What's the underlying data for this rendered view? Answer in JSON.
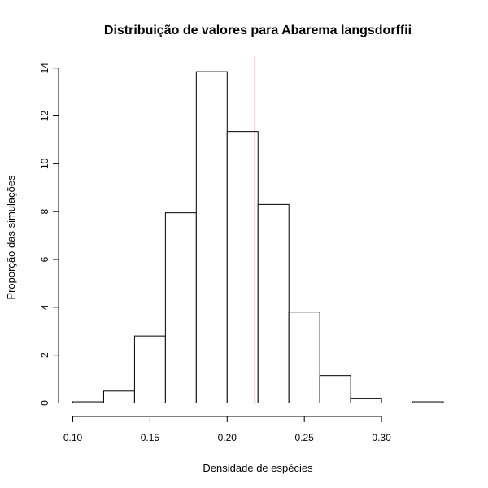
{
  "chart_data": {
    "type": "bar",
    "title": "Distribuição de valores para Abarema langsdorffii",
    "xlabel": "Densidade de espécies",
    "ylabel": "Proporção das simulações",
    "xlim": [
      0.1,
      0.34
    ],
    "ylim": [
      0,
      14.5
    ],
    "x_ticks": [
      "0.10",
      "0.15",
      "0.20",
      "0.25",
      "0.30"
    ],
    "x_tick_values": [
      0.1,
      0.15,
      0.2,
      0.25,
      0.3
    ],
    "y_ticks": [
      "0",
      "2",
      "4",
      "6",
      "8",
      "10",
      "12",
      "14"
    ],
    "y_tick_values": [
      0,
      2,
      4,
      6,
      8,
      10,
      12,
      14
    ],
    "bins": [
      {
        "start": 0.1,
        "end": 0.12,
        "value": 0.05
      },
      {
        "start": 0.12,
        "end": 0.14,
        "value": 0.5
      },
      {
        "start": 0.14,
        "end": 0.16,
        "value": 2.8
      },
      {
        "start": 0.16,
        "end": 0.18,
        "value": 7.95
      },
      {
        "start": 0.18,
        "end": 0.2,
        "value": 13.85
      },
      {
        "start": 0.2,
        "end": 0.22,
        "value": 11.35
      },
      {
        "start": 0.22,
        "end": 0.24,
        "value": 8.3
      },
      {
        "start": 0.24,
        "end": 0.26,
        "value": 3.8
      },
      {
        "start": 0.26,
        "end": 0.28,
        "value": 1.15
      },
      {
        "start": 0.28,
        "end": 0.3,
        "value": 0.2
      },
      {
        "start": 0.3,
        "end": 0.32,
        "value": 0.0
      },
      {
        "start": 0.32,
        "end": 0.34,
        "value": 0.05
      }
    ],
    "reference_line": {
      "x": 0.218,
      "color": "#cc0000"
    },
    "bar_fill": "#ffffff",
    "bar_stroke": "#000000",
    "grid": false,
    "legend": "none"
  }
}
